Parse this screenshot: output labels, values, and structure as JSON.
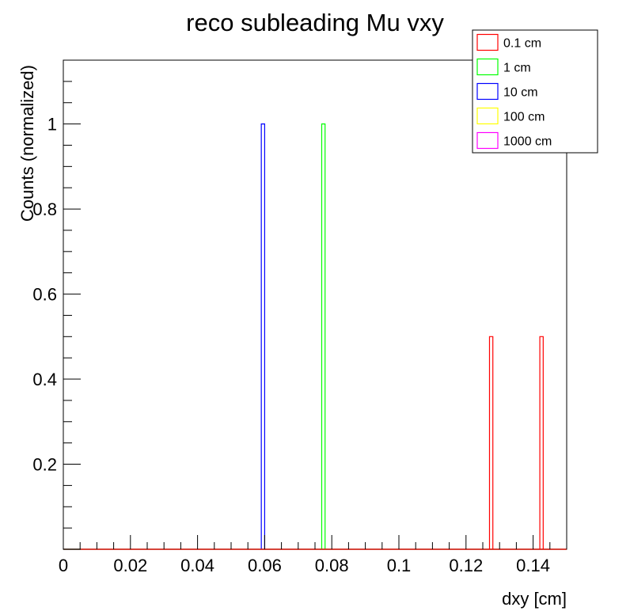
{
  "chart_data": {
    "type": "bar",
    "title": "reco subleading Mu vxy",
    "xlabel": "dxy [cm]",
    "ylabel": "Counts (normalized)",
    "xlim": [
      0,
      0.15
    ],
    "ylim": [
      0,
      1.15
    ],
    "x_ticks": [
      "0",
      "0.02",
      "0.04",
      "0.06",
      "0.08",
      "0.1",
      "0.12",
      "0.14"
    ],
    "y_ticks": [
      "0.2",
      "0.4",
      "0.6",
      "0.8",
      "1"
    ],
    "bin_width": 0.001,
    "grid": false,
    "legend_position": "top-right",
    "series": [
      {
        "name": "0.1 cm",
        "color": "#ff0000",
        "bins": [
          {
            "x0": 0.127,
            "x1": 0.128,
            "value": 0.5
          },
          {
            "x0": 0.142,
            "x1": 0.143,
            "value": 0.5
          }
        ]
      },
      {
        "name": "1 cm",
        "color": "#00ff00",
        "bins": [
          {
            "x0": 0.077,
            "x1": 0.078,
            "value": 1.0
          }
        ]
      },
      {
        "name": "10 cm",
        "color": "#0000ff",
        "bins": [
          {
            "x0": 0.059,
            "x1": 0.06,
            "value": 1.0
          }
        ]
      },
      {
        "name": "100 cm",
        "color": "#ffff00",
        "bins": []
      },
      {
        "name": "1000 cm",
        "color": "#ff00ff",
        "bins": []
      }
    ]
  }
}
